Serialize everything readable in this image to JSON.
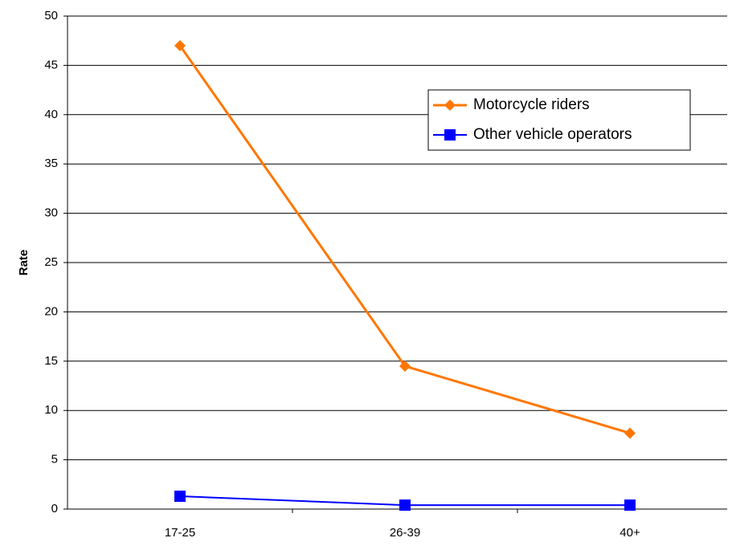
{
  "chart_data": {
    "type": "line",
    "y_label": "Rate",
    "categories": [
      "17-25",
      "26-39",
      "40+"
    ],
    "series": [
      {
        "name": "Motorcycle riders",
        "color": "#ff7700",
        "marker": "diamond",
        "values": [
          47,
          14.5,
          7.7
        ]
      },
      {
        "name": "Other vehicle operators",
        "color": "#0000ff",
        "marker": "square",
        "values": [
          1.3,
          0.4,
          0.4
        ]
      }
    ],
    "ylim": [
      0,
      50
    ],
    "yticks": [
      0,
      5,
      10,
      15,
      20,
      25,
      30,
      35,
      40,
      45,
      50
    ],
    "grid": true,
    "legend": "upper right"
  }
}
